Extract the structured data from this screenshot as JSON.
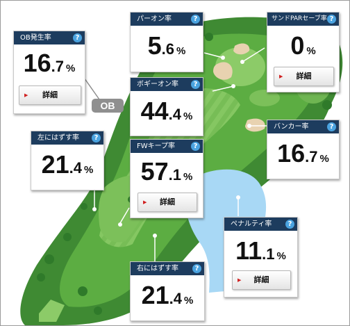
{
  "cards": {
    "ob": {
      "title": "OB発生率",
      "int": "16",
      "dec": ".7",
      "unit": "%",
      "button": "詳細"
    },
    "par_on": {
      "title": "パーオン率",
      "int": "5",
      "dec": ".6",
      "unit": "%"
    },
    "sand_save": {
      "title": "サンドPARセーブ率",
      "int": "0",
      "dec": "",
      "unit": "%",
      "button": "詳細"
    },
    "bogey_on": {
      "title": "ボギーオン率",
      "int": "44",
      "dec": ".4",
      "unit": "%"
    },
    "miss_left": {
      "title": "左にはずす率",
      "int": "21",
      "dec": ".4",
      "unit": "%"
    },
    "fw_keep": {
      "title": "FWキープ率",
      "int": "57",
      "dec": ".1",
      "unit": "%",
      "button": "詳細"
    },
    "bunker": {
      "title": "バンカー率",
      "int": "16",
      "dec": ".7",
      "unit": "%"
    },
    "penalty": {
      "title": "ペナルティ率",
      "int": "11",
      "dec": ".1",
      "unit": "%",
      "button": "詳細"
    },
    "miss_right": {
      "title": "右にはずす率",
      "int": "21",
      "dec": ".4",
      "unit": "%"
    }
  },
  "help_icon": "?",
  "ob_badge": "OB",
  "icons": {
    "help": "question-circle-icon",
    "button_arrow": "red-triangle-arrow-icon"
  },
  "colors": {
    "header": "#1d3c5e",
    "help": "#4aa3e0",
    "fairway": "#5cad42",
    "rough": "#3f8a33",
    "water": "#a8d8f5",
    "bunker": "#e8d2b0",
    "arrow": "#d02020"
  }
}
